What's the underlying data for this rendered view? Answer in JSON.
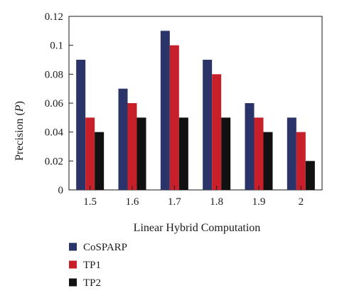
{
  "chart_data": {
    "type": "bar",
    "categories": [
      "1.5",
      "1.6",
      "1.7",
      "1.8",
      "1.9",
      "2"
    ],
    "xlabel": "Linear Hybrid Computation",
    "ylabel_prefix": "Precision (",
    "ylabel_var": "P",
    "ylabel_suffix": ")",
    "ylim": [
      0,
      0.12
    ],
    "yticks": [
      "0",
      "0.02",
      "0.04",
      "0.06",
      "0.08",
      "0.1",
      "0.12"
    ],
    "ytick_values": [
      0,
      0.02,
      0.04,
      0.06,
      0.08,
      0.1,
      0.12
    ],
    "grid": false,
    "legend_position": "bottom-left",
    "series": [
      {
        "name": "CoSPARP",
        "color": "#2b3468",
        "values": [
          0.09,
          0.07,
          0.11,
          0.09,
          0.06,
          0.05
        ]
      },
      {
        "name": "TP1",
        "color": "#c8202a",
        "values": [
          0.05,
          0.06,
          0.1,
          0.08,
          0.05,
          0.04
        ]
      },
      {
        "name": "TP2",
        "color": "#111111",
        "values": [
          0.04,
          0.05,
          0.05,
          0.05,
          0.04,
          0.02
        ]
      }
    ]
  }
}
